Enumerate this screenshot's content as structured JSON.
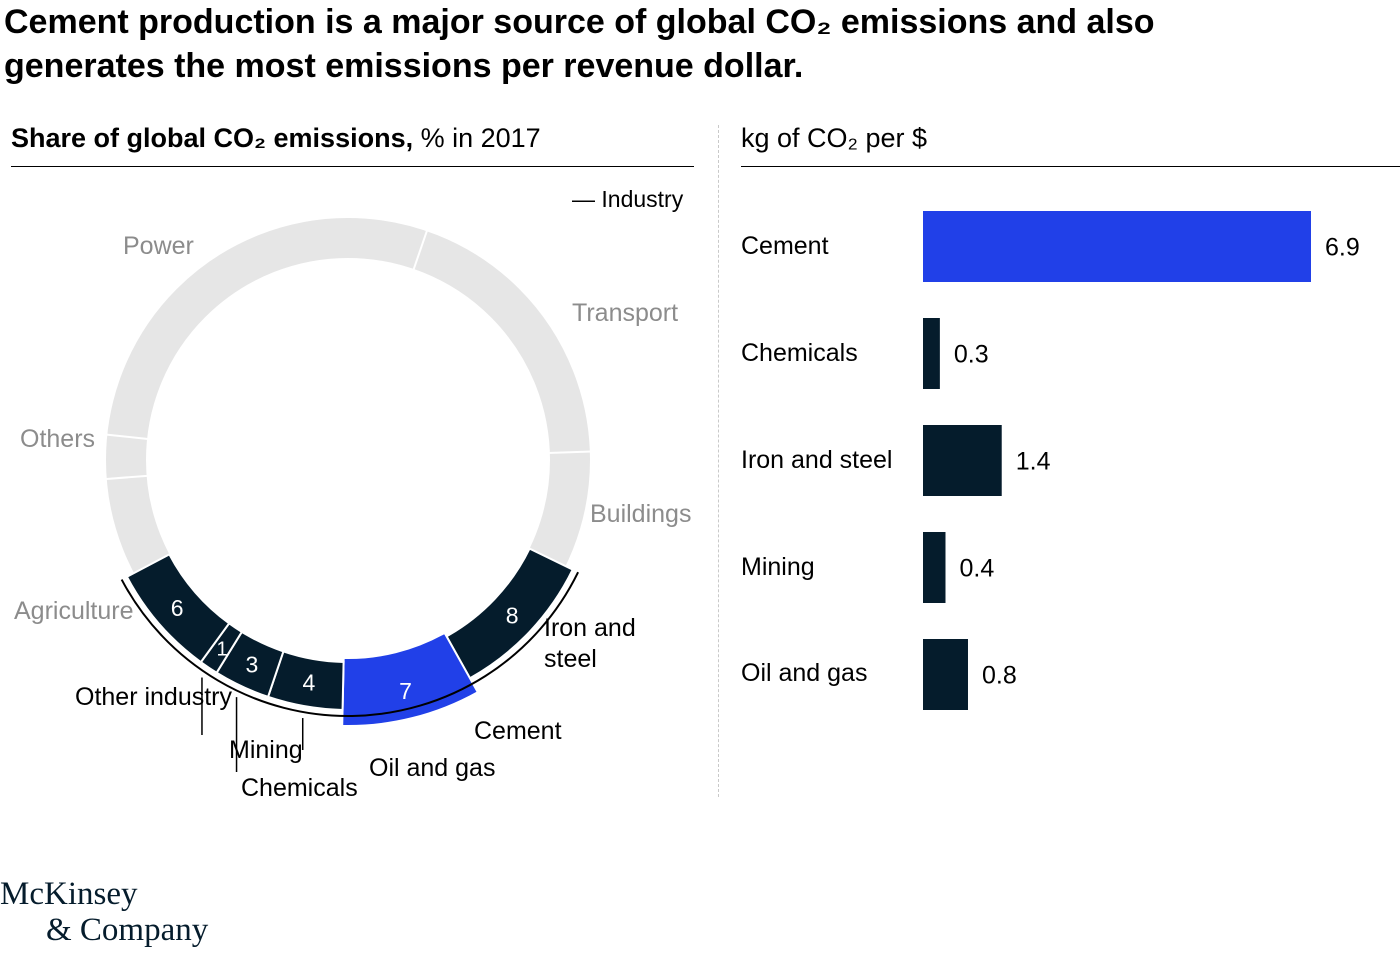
{
  "title": {
    "line1": "Cement production is a major source of global CO₂ emissions and also",
    "line2": "generates the most emissions per revenue dollar."
  },
  "left_panel": {
    "title_bold": "Share of global CO₂ emissions,",
    "title_regular": " % in 2017",
    "legend": "— Industry"
  },
  "right_panel": {
    "title": "kg of CO₂ per $"
  },
  "colors": {
    "highlight": "#2140e8",
    "industry": "#051c2c",
    "other_sectors": "#e6e6e6",
    "muted_text": "#8c8c8c"
  },
  "chart_data": [
    {
      "type": "pie",
      "variant": "donut",
      "title": "Share of global CO₂ emissions, % in 2017",
      "industry_segments": [
        {
          "label": "Other industry",
          "value": 6
        },
        {
          "label": "Mining",
          "value": 1
        },
        {
          "label": "Chemicals",
          "value": 3
        },
        {
          "label": "Oil and gas",
          "value": 4
        },
        {
          "label": "Cement",
          "value": 7,
          "highlight": true
        },
        {
          "label": "Iron and steel",
          "value": 8
        }
      ],
      "other_segments": [
        {
          "label": "Buildings"
        },
        {
          "label": "Transport"
        },
        {
          "label": "Power"
        },
        {
          "label": "Others"
        },
        {
          "label": "Agriculture"
        }
      ],
      "legend": "top-right"
    },
    {
      "type": "bar",
      "orientation": "horizontal",
      "title": "kg of CO₂ per $",
      "categories": [
        "Cement",
        "Chemicals",
        "Iron and steel",
        "Mining",
        "Oil and gas"
      ],
      "values": [
        6.9,
        0.3,
        1.4,
        0.4,
        0.8
      ],
      "value_labels": [
        "6.9",
        "0.3",
        "1.4",
        "0.4",
        "0.8"
      ],
      "highlight": "Cement",
      "xlim": [
        0,
        6.9
      ]
    }
  ],
  "branding": {
    "line1": "McKinsey",
    "line2": "& Company"
  }
}
